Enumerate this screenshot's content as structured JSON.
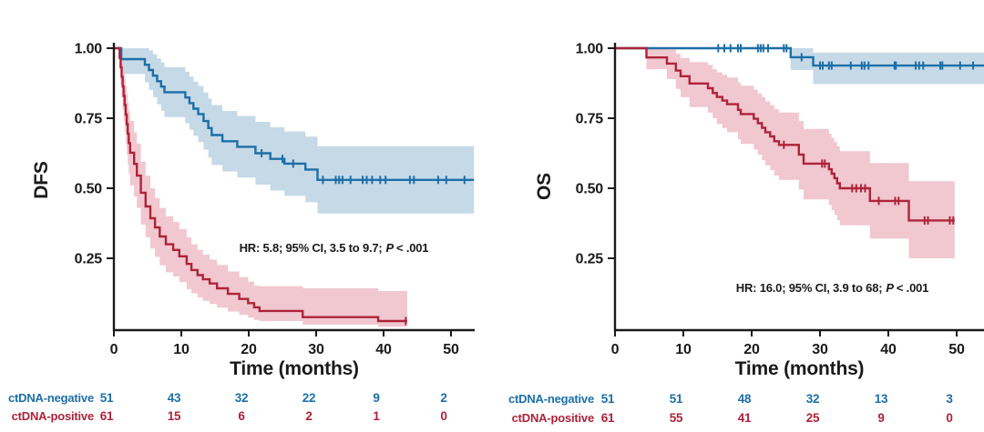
{
  "figure": {
    "background": "#ffffff",
    "text_color": "#1a1a1a",
    "negative_color": "#1c6fa8",
    "positive_color": "#ae2339",
    "negative_band_color": "#c5d9e7",
    "positive_band_color": "#f1c7d0"
  },
  "chart_data": [
    {
      "type": "line",
      "subtype": "kaplan-meier",
      "title": "",
      "ylabel": "DFS",
      "xlabel": "Time (months)",
      "xlim": [
        0,
        53.5
      ],
      "ylim": [
        0,
        1.02
      ],
      "grid": false,
      "legend_position": "none",
      "xticks": [
        0,
        10,
        20,
        30,
        40,
        50
      ],
      "xtick_labels": [
        "0",
        "10",
        "20",
        "30",
        "40",
        "50"
      ],
      "yticks": [
        1.0,
        0.75,
        0.5,
        0.25
      ],
      "ytick_labels": [
        "1.00",
        "0.75",
        "0.50",
        "0.25"
      ],
      "annotation": {
        "prefix": "HR: 5.8; 95% CI, 3.5 to 9.7;",
        "p": "P",
        "suffix": "< .001",
        "x": 18.6,
        "y": 0.272
      },
      "series": [
        {
          "name": "ctDNA-negative",
          "color": "#1c6fa8",
          "band_color": "#c5d9e7",
          "end": 53.4,
          "points": [
            [
              0,
              1.0,
              1.0,
              1.0
            ],
            [
              1.1,
              0.961,
              0.908,
              1.0
            ],
            [
              4.6,
              0.941,
              0.878,
              1.0
            ],
            [
              5.2,
              0.922,
              0.851,
              0.993
            ],
            [
              5.8,
              0.902,
              0.825,
              0.979
            ],
            [
              6.4,
              0.882,
              0.8,
              0.964
            ],
            [
              7.0,
              0.863,
              0.777,
              0.949
            ],
            [
              7.5,
              0.843,
              0.754,
              0.932
            ],
            [
              10.6,
              0.824,
              0.732,
              0.916
            ],
            [
              11.2,
              0.804,
              0.709,
              0.899
            ],
            [
              11.8,
              0.784,
              0.687,
              0.881
            ],
            [
              12.5,
              0.765,
              0.665,
              0.865
            ],
            [
              13.3,
              0.74,
              0.638,
              0.842
            ],
            [
              14.0,
              0.715,
              0.61,
              0.82
            ],
            [
              14.5,
              0.69,
              0.583,
              0.797
            ],
            [
              16.1,
              0.668,
              0.56,
              0.776
            ],
            [
              18.3,
              0.648,
              0.538,
              0.758
            ],
            [
              21.0,
              0.625,
              0.513,
              0.737
            ],
            [
              23.2,
              0.605,
              0.492,
              0.718
            ],
            [
              25.3,
              0.588,
              0.473,
              0.703
            ],
            [
              28.4,
              0.567,
              0.45,
              0.684
            ],
            [
              30.2,
              0.53,
              0.41,
              0.65
            ]
          ],
          "censors": [
            [
              21.9,
              0.625
            ],
            [
              25.0,
              0.605
            ],
            [
              26.6,
              0.588
            ],
            [
              31.0,
              0.53
            ],
            [
              32.9,
              0.53
            ],
            [
              33.4,
              0.53
            ],
            [
              33.9,
              0.53
            ],
            [
              35.1,
              0.53
            ],
            [
              36.9,
              0.53
            ],
            [
              37.5,
              0.53
            ],
            [
              38.3,
              0.53
            ],
            [
              39.5,
              0.53
            ],
            [
              40.3,
              0.53
            ],
            [
              43.9,
              0.53
            ],
            [
              44.5,
              0.53
            ],
            [
              48.1,
              0.53
            ],
            [
              49.3,
              0.53
            ],
            [
              52.0,
              0.53
            ]
          ]
        },
        {
          "name": "ctDNA-positive",
          "color": "#ae2339",
          "band_color": "#f1c7d0",
          "end": 43.5,
          "points": [
            [
              0,
              1.0,
              1.0,
              1.0
            ],
            [
              0.85,
              0.966,
              0.92,
              1.0
            ],
            [
              1.0,
              0.932,
              0.87,
              0.99
            ],
            [
              1.15,
              0.898,
              0.825,
              0.97
            ],
            [
              1.3,
              0.864,
              0.78,
              0.945
            ],
            [
              1.45,
              0.83,
              0.74,
              0.92
            ],
            [
              1.6,
              0.797,
              0.7,
              0.893
            ],
            [
              1.75,
              0.763,
              0.66,
              0.865
            ],
            [
              1.9,
              0.729,
              0.62,
              0.836
            ],
            [
              2.05,
              0.695,
              0.585,
              0.805
            ],
            [
              2.2,
              0.661,
              0.55,
              0.775
            ],
            [
              2.4,
              0.627,
              0.51,
              0.74
            ],
            [
              3.0,
              0.587,
              0.47,
              0.7
            ],
            [
              3.4,
              0.545,
              0.43,
              0.66
            ],
            [
              4.0,
              0.484,
              0.37,
              0.595
            ],
            [
              4.7,
              0.435,
              0.325,
              0.545
            ],
            [
              5.4,
              0.393,
              0.285,
              0.5
            ],
            [
              6.1,
              0.36,
              0.255,
              0.465
            ],
            [
              6.8,
              0.328,
              0.225,
              0.43
            ],
            [
              7.7,
              0.3,
              0.2,
              0.4
            ],
            [
              8.8,
              0.28,
              0.185,
              0.38
            ],
            [
              9.7,
              0.257,
              0.165,
              0.355
            ],
            [
              10.8,
              0.23,
              0.14,
              0.325
            ],
            [
              11.5,
              0.208,
              0.125,
              0.3
            ],
            [
              12.4,
              0.19,
              0.11,
              0.28
            ],
            [
              13.2,
              0.175,
              0.098,
              0.263
            ],
            [
              14.2,
              0.16,
              0.087,
              0.245
            ],
            [
              15.3,
              0.143,
              0.074,
              0.226
            ],
            [
              16.9,
              0.123,
              0.06,
              0.203
            ],
            [
              18.6,
              0.105,
              0.048,
              0.183
            ],
            [
              19.9,
              0.09,
              0.038,
              0.167
            ],
            [
              20.8,
              0.075,
              0.03,
              0.152
            ],
            [
              21.6,
              0.062,
              0.026,
              0.15
            ],
            [
              28.0,
              0.04,
              0.013,
              0.143
            ],
            [
              39.2,
              0.026,
              0.006,
              0.133
            ]
          ],
          "censors": [
            [
              43.3,
              0.026
            ]
          ]
        }
      ],
      "risk_table": {
        "rows": [
          {
            "label": "ctDNA-negative",
            "counts": [
              "51",
              "43",
              "32",
              "22",
              "9",
              "2"
            ]
          },
          {
            "label": "ctDNA-positive",
            "counts": [
              "61",
              "15",
              "6",
              "2",
              "1",
              "0"
            ]
          }
        ]
      }
    },
    {
      "type": "line",
      "subtype": "kaplan-meier",
      "title": "",
      "ylabel": "OS",
      "xlabel": "Time (months)",
      "xlim": [
        0,
        54
      ],
      "ylim": [
        0,
        1.02
      ],
      "grid": false,
      "legend_position": "none",
      "xticks": [
        0,
        10,
        20,
        30,
        40,
        50
      ],
      "xtick_labels": [
        "0",
        "10",
        "20",
        "30",
        "40",
        "50"
      ],
      "yticks": [
        1.0,
        0.75,
        0.5,
        0.25
      ],
      "ytick_labels": [
        "1.00",
        "0.75",
        "0.50",
        "0.25"
      ],
      "annotation": {
        "prefix": "HR: 16.0; 95% CI, 3.9 to 68;",
        "p": "P",
        "suffix": "< .001",
        "x": 17.7,
        "y": 0.13
      },
      "series": [
        {
          "name": "ctDNA-negative",
          "color": "#1c6fa8",
          "band_color": "#c5d9e7",
          "end": 54.0,
          "points": [
            [
              0,
              1.0,
              1.0,
              1.0
            ],
            [
              25.7,
              0.968,
              0.922,
              1.0
            ],
            [
              29.0,
              0.938,
              0.872,
              0.984
            ]
          ],
          "censors": [
            [
              15.1,
              1.0
            ],
            [
              16.0,
              1.0
            ],
            [
              16.9,
              1.0
            ],
            [
              18.0,
              1.0
            ],
            [
              18.4,
              1.0
            ],
            [
              20.9,
              1.0
            ],
            [
              21.3,
              1.0
            ],
            [
              21.7,
              1.0
            ],
            [
              22.4,
              1.0
            ],
            [
              24.7,
              1.0
            ],
            [
              25.1,
              1.0
            ],
            [
              27.3,
              0.968
            ],
            [
              30.0,
              0.938
            ],
            [
              30.4,
              0.938
            ],
            [
              31.3,
              0.938
            ],
            [
              31.7,
              0.938
            ],
            [
              34.5,
              0.938
            ],
            [
              36.1,
              0.938
            ],
            [
              36.5,
              0.938
            ],
            [
              37.1,
              0.938
            ],
            [
              40.9,
              0.938
            ],
            [
              41.1,
              0.938
            ],
            [
              44.0,
              0.938
            ],
            [
              44.5,
              0.938
            ],
            [
              45.1,
              0.938
            ],
            [
              47.6,
              0.938
            ],
            [
              47.9,
              0.938
            ],
            [
              50.5,
              0.938
            ],
            [
              52.4,
              0.938
            ]
          ]
        },
        {
          "name": "ctDNA-positive",
          "color": "#ae2339",
          "band_color": "#f1c7d0",
          "end": 49.7,
          "points": [
            [
              0,
              1.0,
              1.0,
              1.0
            ],
            [
              4.6,
              0.967,
              0.925,
              1.0
            ],
            [
              7.6,
              0.945,
              0.89,
              0.995
            ],
            [
              8.9,
              0.92,
              0.855,
              0.98
            ],
            [
              9.6,
              0.9,
              0.825,
              0.965
            ],
            [
              10.9,
              0.874,
              0.79,
              0.95
            ],
            [
              13.6,
              0.857,
              0.77,
              0.94
            ],
            [
              14.3,
              0.84,
              0.75,
              0.925
            ],
            [
              14.9,
              0.826,
              0.73,
              0.914
            ],
            [
              15.7,
              0.813,
              0.715,
              0.905
            ],
            [
              16.4,
              0.8,
              0.7,
              0.895
            ],
            [
              18.0,
              0.78,
              0.675,
              0.878
            ],
            [
              18.4,
              0.765,
              0.658,
              0.866
            ],
            [
              20.3,
              0.748,
              0.638,
              0.852
            ],
            [
              20.9,
              0.732,
              0.62,
              0.838
            ],
            [
              21.5,
              0.716,
              0.6,
              0.825
            ],
            [
              22.0,
              0.7,
              0.582,
              0.81
            ],
            [
              22.7,
              0.685,
              0.565,
              0.797
            ],
            [
              23.3,
              0.668,
              0.545,
              0.782
            ],
            [
              24.0,
              0.655,
              0.53,
              0.77
            ],
            [
              26.9,
              0.62,
              0.495,
              0.74
            ],
            [
              27.6,
              0.588,
              0.46,
              0.712
            ],
            [
              31.3,
              0.568,
              0.44,
              0.694
            ],
            [
              31.7,
              0.552,
              0.422,
              0.68
            ],
            [
              32.1,
              0.536,
              0.405,
              0.665
            ],
            [
              32.5,
              0.518,
              0.386,
              0.65
            ],
            [
              32.9,
              0.5,
              0.368,
              0.632
            ],
            [
              37.3,
              0.455,
              0.32,
              0.59
            ],
            [
              43.0,
              0.385,
              0.25,
              0.525
            ]
          ],
          "censors": [
            [
              24.7,
              0.655
            ],
            [
              30.3,
              0.588
            ],
            [
              30.7,
              0.588
            ],
            [
              34.7,
              0.5
            ],
            [
              35.3,
              0.5
            ],
            [
              36.0,
              0.5
            ],
            [
              36.6,
              0.5
            ],
            [
              38.6,
              0.455
            ],
            [
              41.0,
              0.455
            ],
            [
              41.5,
              0.455
            ],
            [
              45.3,
              0.385
            ],
            [
              45.8,
              0.385
            ],
            [
              49.0,
              0.385
            ],
            [
              49.5,
              0.385
            ]
          ]
        }
      ],
      "risk_table": {
        "rows": [
          {
            "label": "ctDNA-negative",
            "counts": [
              "51",
              "51",
              "48",
              "32",
              "13",
              "3"
            ]
          },
          {
            "label": "ctDNA-positive",
            "counts": [
              "61",
              "55",
              "41",
              "25",
              "9",
              "0"
            ]
          }
        ]
      }
    }
  ]
}
